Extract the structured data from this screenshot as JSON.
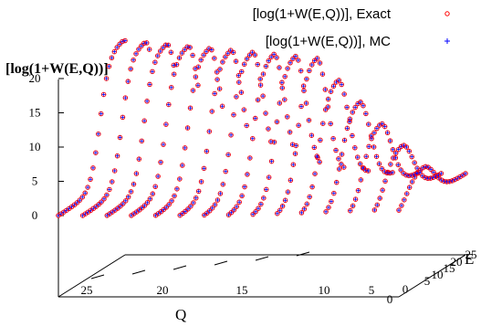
{
  "chart_data": {
    "type": "scatter",
    "title": "",
    "zlabel": "[log(1+W(E,Q))]",
    "xlabel": "Q",
    "ylabel": "E",
    "x_ticks": [
      "25",
      "20",
      "15",
      "10",
      "5",
      "0"
    ],
    "y_ticks": [
      "0",
      "5",
      "10",
      "15",
      "20",
      "25"
    ],
    "z_ticks": [
      "0",
      "5",
      "10",
      "15",
      "20"
    ],
    "xlim": [
      0,
      28
    ],
    "ylim": [
      0,
      25
    ],
    "zlim": [
      0,
      20
    ],
    "grid": false,
    "legend_position": "top-right",
    "series": [
      {
        "name": "[log(1+W(E,Q))], Exact",
        "marker": "circle",
        "color": "#ff0000",
        "q_values": [
          0,
          2,
          4,
          6,
          8,
          10,
          12,
          14,
          16,
          18,
          20,
          22,
          24,
          26,
          28
        ],
        "e_values": [
          0,
          1,
          2,
          3,
          4,
          5,
          6,
          7,
          8,
          9,
          10,
          11,
          12,
          13,
          14,
          15,
          16,
          17,
          18,
          19,
          20,
          21,
          22,
          23,
          24,
          25
        ],
        "surface_peak_z": 19.7
      },
      {
        "name": "[log(1+W(E,Q))], MC",
        "marker": "plus",
        "color": "#0000ff",
        "q_values": [
          0,
          2,
          4,
          6,
          8,
          10,
          12,
          14,
          16,
          18,
          20,
          22,
          24,
          26,
          28
        ],
        "e_values": [
          0,
          1,
          2,
          3,
          4,
          5,
          6,
          7,
          8,
          9,
          10,
          11,
          12,
          13,
          14,
          15,
          16,
          17,
          18,
          19,
          20,
          21,
          22,
          23,
          24,
          25
        ],
        "surface_peak_z": 19.7
      }
    ]
  }
}
